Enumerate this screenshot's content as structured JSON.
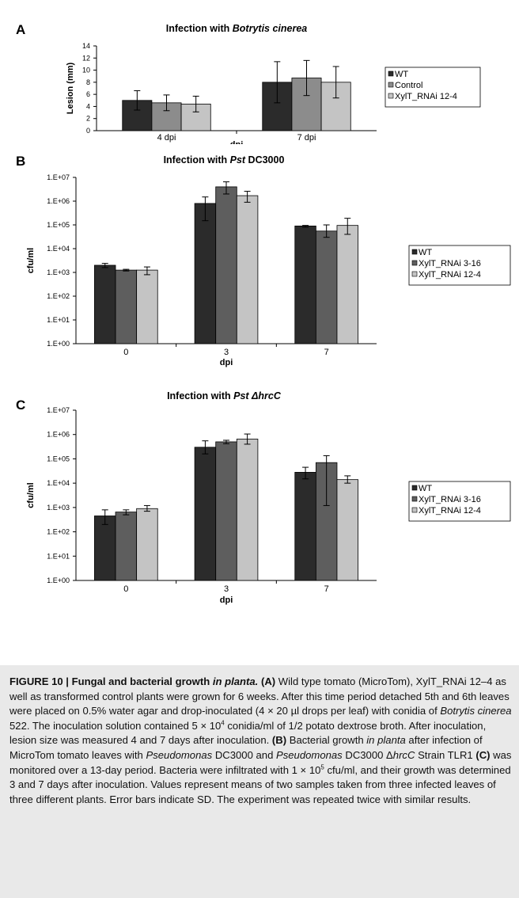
{
  "chart_data": [
    {
      "panel": "A",
      "type": "bar",
      "title": "Infection with Botrytis cinerea",
      "title_parts": [
        {
          "text": "Infection with ",
          "italic": false
        },
        {
          "text": "Botrytis cinerea",
          "italic": true
        }
      ],
      "xlabel": "dpi",
      "ylabel": "Lesion (mm)",
      "scale": "linear",
      "ylim": [
        0,
        14
      ],
      "yticks": [
        "0",
        "2",
        "4",
        "6",
        "8",
        "10",
        "12",
        "14"
      ],
      "categories": [
        "4 dpi",
        "7 dpi"
      ],
      "series": [
        {
          "name": "WT",
          "color": "#2b2b2b",
          "values": [
            5.0,
            8.0
          ],
          "errors": [
            1.6,
            3.4
          ]
        },
        {
          "name": "Control",
          "color": "#8c8c8c",
          "values": [
            4.6,
            8.7
          ],
          "errors": [
            1.3,
            2.9
          ]
        },
        {
          "name": "XylT_RNAi 12-4",
          "color": "#c4c4c4",
          "values": [
            4.4,
            8.0
          ],
          "errors": [
            1.3,
            2.6
          ]
        }
      ],
      "legend": "right",
      "grid": false
    },
    {
      "panel": "B",
      "type": "bar",
      "title": "Infection with Pst DC3000",
      "title_parts": [
        {
          "text": "Infection with ",
          "italic": false
        },
        {
          "text": "Pst",
          "italic": true
        },
        {
          "text": " DC3000",
          "italic": false
        }
      ],
      "xlabel": "dpi",
      "ylabel": "cfu/ml",
      "scale": "log",
      "ylim": [
        1,
        10000000
      ],
      "yticks": [
        "1.E+00",
        "1.E+01",
        "1.E+02",
        "1.E+03",
        "1.E+04",
        "1.E+05",
        "1.E+06",
        "1.E+07"
      ],
      "categories": [
        "0",
        "3",
        "7"
      ],
      "series": [
        {
          "name": "WT",
          "color": "#2b2b2b",
          "values": [
            2000,
            800000,
            90000
          ],
          "err_low": [
            1600,
            150000,
            80000
          ],
          "err_high": [
            2400,
            1500000,
            95000
          ]
        },
        {
          "name": "XylT_RNAi 3-16",
          "color": "#5e5e5e",
          "values": [
            1250,
            4000000,
            55000
          ],
          "err_low": [
            1150,
            2000000,
            30000
          ],
          "err_high": [
            1350,
            6500000,
            100000
          ]
        },
        {
          "name": "XylT_RNAi 12-4",
          "color": "#c4c4c4",
          "values": [
            1250,
            1700000,
            95000
          ],
          "err_low": [
            800,
            900000,
            40000
          ],
          "err_high": [
            1700,
            2600000,
            190000
          ]
        }
      ],
      "legend": "right",
      "grid": false
    },
    {
      "panel": "C",
      "type": "bar",
      "title": "Infection with Pst ΔhrcC",
      "title_parts": [
        {
          "text": "Infection with ",
          "italic": false
        },
        {
          "text": "Pst ΔhrcC",
          "italic": true
        }
      ],
      "xlabel": "dpi",
      "ylabel": "cfu/ml",
      "scale": "log",
      "ylim": [
        1,
        10000000
      ],
      "yticks": [
        "1.E+00",
        "1.E+01",
        "1.E+02",
        "1.E+03",
        "1.E+04",
        "1.E+05",
        "1.E+06",
        "1.E+07"
      ],
      "categories": [
        "0",
        "3",
        "7"
      ],
      "series": [
        {
          "name": "WT",
          "color": "#2b2b2b",
          "values": [
            450,
            300000,
            28000
          ],
          "err_low": [
            200,
            160000,
            15000
          ],
          "err_high": [
            800,
            550000,
            45000
          ]
        },
        {
          "name": "XylT_RNAi 3-16",
          "color": "#5e5e5e",
          "values": [
            650,
            500000,
            70000
          ],
          "err_low": [
            500,
            420000,
            1200
          ],
          "err_high": [
            800,
            580000,
            135000
          ]
        },
        {
          "name": "XylT_RNAi 12-4",
          "color": "#c4c4c4",
          "values": [
            900,
            650000,
            14000
          ],
          "err_low": [
            700,
            400000,
            10000
          ],
          "err_high": [
            1200,
            1050000,
            20000
          ]
        }
      ],
      "legend": "right",
      "grid": false
    }
  ],
  "caption": {
    "title": "FIGURE 10 | Fungal and bacterial growth ",
    "title_italic": "in planta.",
    "body": [
      {
        "t": " (A)",
        "b": true
      },
      {
        "t": " Wild type tomato (MicroTom), XylT_RNAi 12–4 as well as transformed control plants were grown for 6 weeks. After this time period detached 5th and 6th leaves were placed on 0.5% water agar and drop-inoculated (4 × 20 µl drops per leaf) with conidia of "
      },
      {
        "t": "Botrytis cinerea",
        "i": true
      },
      {
        "t": " 522. The inoculation solution contained 5 × 10"
      },
      {
        "t": "4",
        "sup": true
      },
      {
        "t": " conidia/ml of 1/2 potato dextrose broth. After inoculation, lesion size was measured 4 and 7 days after inoculation. "
      },
      {
        "t": "(B)",
        "b": true
      },
      {
        "t": " Bacterial growth "
      },
      {
        "t": "in planta",
        "i": true
      },
      {
        "t": " after infection of MicroTom tomato leaves with "
      },
      {
        "t": "Pseudomonas",
        "i": true
      },
      {
        "t": " DC3000 and "
      },
      {
        "t": "Pseudomonas",
        "i": true
      },
      {
        "t": " DC3000 Δ"
      },
      {
        "t": "hrcC",
        "i": true
      },
      {
        "t": " Strain TLR1 "
      },
      {
        "t": "(C)",
        "b": true
      },
      {
        "t": " was monitored over a 13-day period. Bacteria were infiltrated with 1 × 10"
      },
      {
        "t": "5",
        "sup": true
      },
      {
        "t": " cfu/ml, and their growth was determined 3 and 7 days after inoculation. Values represent means of two samples taken from three infected leaves of three different plants. Error bars indicate SD. The experiment was repeated twice with similar results."
      }
    ]
  }
}
